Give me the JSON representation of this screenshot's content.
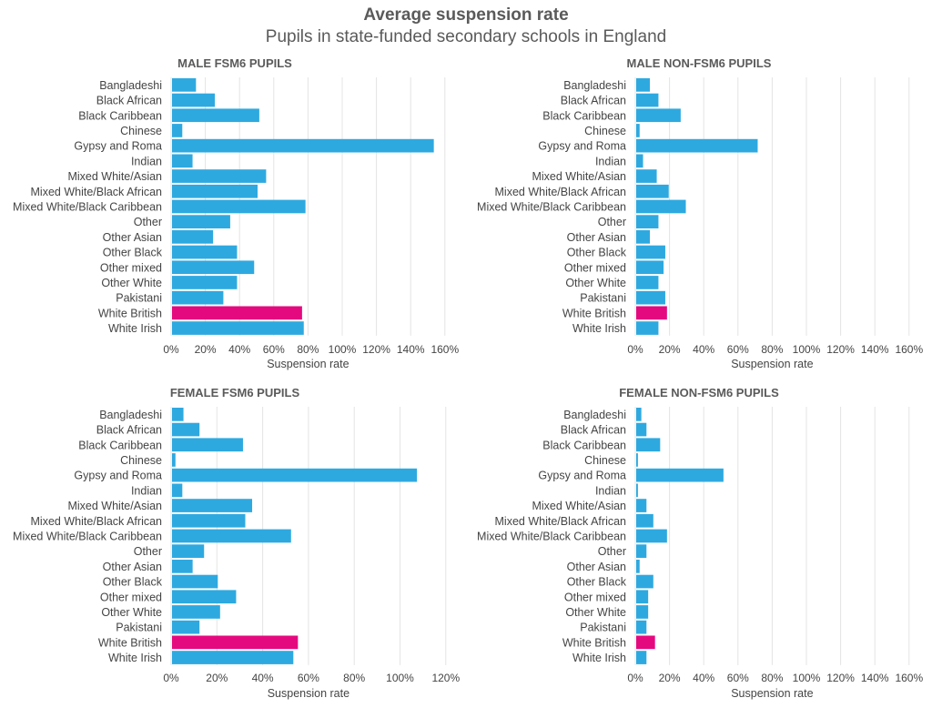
{
  "header": {
    "title": "Average suspension rate",
    "subtitle": "Pupils in state-funded secondary schools in England"
  },
  "colors": {
    "bar": "#2ea9e0",
    "highlight": "#e5097f",
    "grid": "#e4e4e4",
    "text": "#444444"
  },
  "chart_data": [
    {
      "type": "bar",
      "orientation": "horizontal",
      "title": "MALE FSM6 PUPILS",
      "xlabel": "Suspension rate",
      "xlim": [
        0,
        1.6
      ],
      "ticks": [
        "0%",
        "20%",
        "40%",
        "60%",
        "80%",
        "100%",
        "120%",
        "140%",
        "160%"
      ],
      "grid": true,
      "categories": [
        "Bangladeshi",
        "Black African",
        "Black Caribbean",
        "Chinese",
        "Gypsy and Roma",
        "Indian",
        "Mixed White/Asian",
        "Mixed White/Black African",
        "Mixed White/Black Caribbean",
        "Other",
        "Other Asian",
        "Other Black",
        "Other mixed",
        "Other White",
        "Pakistani",
        "White British",
        "White Irish"
      ],
      "values": [
        0.14,
        0.25,
        0.51,
        0.06,
        1.53,
        0.12,
        0.55,
        0.5,
        0.78,
        0.34,
        0.24,
        0.38,
        0.48,
        0.38,
        0.3,
        0.76,
        0.77
      ],
      "highlight": "White British"
    },
    {
      "type": "bar",
      "orientation": "horizontal",
      "title": "MALE NON-FSM6 PUPILS",
      "xlabel": "Suspension rate",
      "xlim": [
        0,
        1.6
      ],
      "ticks": [
        "0%",
        "20%",
        "40%",
        "60%",
        "80%",
        "100%",
        "120%",
        "140%",
        "160%"
      ],
      "grid": true,
      "categories": [
        "Bangladeshi",
        "Black African",
        "Black Caribbean",
        "Chinese",
        "Gypsy and Roma",
        "Indian",
        "Mixed White/Asian",
        "Mixed White/Black African",
        "Mixed White/Black Caribbean",
        "Other",
        "Other Asian",
        "Other Black",
        "Other mixed",
        "Other White",
        "Pakistani",
        "White British",
        "White Irish"
      ],
      "values": [
        0.08,
        0.13,
        0.26,
        0.02,
        0.71,
        0.04,
        0.12,
        0.19,
        0.29,
        0.13,
        0.08,
        0.17,
        0.16,
        0.13,
        0.17,
        0.18,
        0.13
      ],
      "highlight": "White British"
    },
    {
      "type": "bar",
      "orientation": "horizontal",
      "title": "FEMALE FSM6 PUPILS",
      "xlabel": "Suspension rate",
      "xlim": [
        0,
        1.2
      ],
      "ticks": [
        "0%",
        "20%",
        "40%",
        "60%",
        "80%",
        "100%",
        "120%"
      ],
      "grid": true,
      "categories": [
        "Bangladeshi",
        "Black African",
        "Black Caribbean",
        "Chinese",
        "Gypsy and Roma",
        "Indian",
        "Mixed White/Asian",
        "Mixed White/Black African",
        "Mixed White/Black Caribbean",
        "Other",
        "Other Asian",
        "Other Black",
        "Other mixed",
        "Other White",
        "Pakistani",
        "White British",
        "White Irish"
      ],
      "values": [
        0.05,
        0.12,
        0.31,
        0.015,
        1.07,
        0.045,
        0.35,
        0.32,
        0.52,
        0.14,
        0.09,
        0.2,
        0.28,
        0.21,
        0.12,
        0.55,
        0.53
      ],
      "highlight": "White British"
    },
    {
      "type": "bar",
      "orientation": "horizontal",
      "title": "FEMALE NON-FSM6 PUPILS",
      "xlabel": "Suspension rate",
      "xlim": [
        0,
        1.6
      ],
      "ticks": [
        "0%",
        "20%",
        "40%",
        "60%",
        "80%",
        "100%",
        "120%",
        "140%",
        "160%"
      ],
      "grid": true,
      "categories": [
        "Bangladeshi",
        "Black African",
        "Black Caribbean",
        "Chinese",
        "Gypsy and Roma",
        "Indian",
        "Mixed White/Asian",
        "Mixed White/Black African",
        "Mixed White/Black Caribbean",
        "Other",
        "Other Asian",
        "Other Black",
        "Other mixed",
        "Other White",
        "Pakistani",
        "White British",
        "White Irish"
      ],
      "values": [
        0.03,
        0.06,
        0.14,
        0.01,
        0.51,
        0.01,
        0.06,
        0.1,
        0.18,
        0.06,
        0.02,
        0.1,
        0.07,
        0.07,
        0.06,
        0.11,
        0.06
      ],
      "highlight": "White British"
    }
  ]
}
